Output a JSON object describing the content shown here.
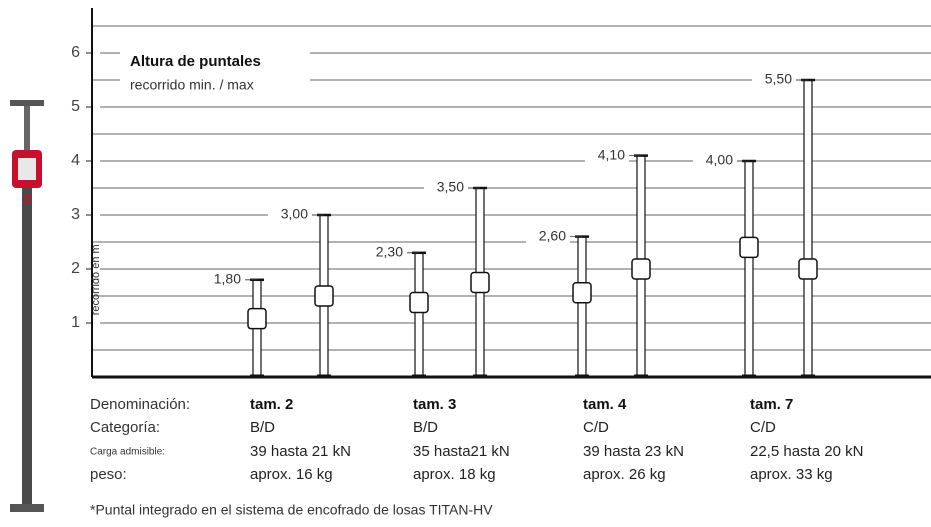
{
  "chart_data": {
    "type": "range",
    "title": "Altura de puntales",
    "subtitle": "recorrido min. / max",
    "y_label": "recorrido en m",
    "ylim": [
      0,
      6.8
    ],
    "yticks": [
      1,
      2,
      3,
      4,
      5,
      6
    ],
    "minor_yticks": [
      0.5,
      1.5,
      2.5,
      3.5,
      4.5,
      5.5,
      6.5
    ],
    "grid": true,
    "row_labels": [
      "Denominación:",
      "Categoría:",
      "Carga admisible:",
      "peso:"
    ],
    "series": [
      {
        "name": "tam. 2",
        "values": [
          1.8,
          3.0
        ],
        "value_labels": [
          "1,80",
          "3,00"
        ],
        "category": "B/D",
        "load": "39 hasta 21 kN",
        "weight": "aprox. 16 kg"
      },
      {
        "name": "tam. 3",
        "values": [
          2.3,
          3.5
        ],
        "value_labels": [
          "2,30",
          "3,50"
        ],
        "category": "B/D",
        "load": "35 hasta21 kN",
        "weight": "aprox. 18 kg"
      },
      {
        "name": "tam. 4",
        "values": [
          2.6,
          4.1
        ],
        "value_labels": [
          "2,60",
          "4,10"
        ],
        "category": "C/D",
        "load": "39 hasta 23 kN",
        "weight": "aprox. 26 kg"
      },
      {
        "name": "tam. 7",
        "values": [
          4.0,
          5.5
        ],
        "value_labels": [
          "4,00",
          "5,50"
        ],
        "category": "C/D",
        "load": "22,5 hasta 20 kN",
        "weight": "aprox. 33 kg"
      }
    ],
    "footnote": "*Puntal integrado en el sistema de encofrado de losas TITAN-HV",
    "illustration_label": "2"
  }
}
